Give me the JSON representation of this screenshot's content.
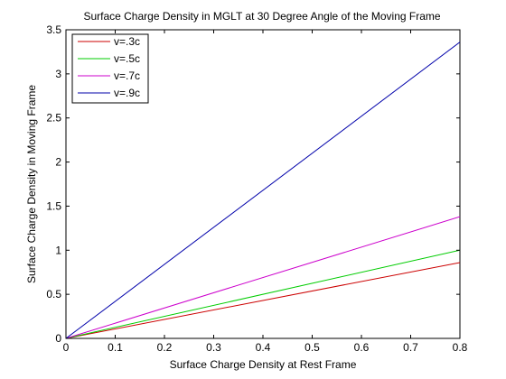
{
  "chart_data": {
    "type": "line",
    "title": "Surface Charge Density in MGLT at 30 Degree Angle of the Moving Frame",
    "xlabel": "Surface Charge Density at Rest Frame",
    "ylabel": "Surface Charge Density in Moving Frame",
    "xlim": [
      0,
      0.8
    ],
    "ylim": [
      0,
      3.5
    ],
    "xticks": [
      0,
      0.1,
      0.2,
      0.3,
      0.4,
      0.5,
      0.6,
      0.7,
      0.8
    ],
    "xtick_labels": [
      "0",
      "0.1",
      "0.2",
      "0.3",
      "0.4",
      "0.5",
      "0.6",
      "0.7",
      "0.8"
    ],
    "yticks": [
      0,
      0.5,
      1,
      1.5,
      2,
      2.5,
      3,
      3.5
    ],
    "ytick_labels": [
      "0",
      "0.5",
      "1",
      "1.5",
      "2",
      "2.5",
      "3",
      "3.5"
    ],
    "grid": false,
    "legend_position": "top-left",
    "series": [
      {
        "name": "v=.3c",
        "color": "#cc0000",
        "x": [
          0,
          0.8
        ],
        "y": [
          0,
          0.86
        ]
      },
      {
        "name": "v=.5c",
        "color": "#00cc00",
        "x": [
          0,
          0.8
        ],
        "y": [
          0,
          1.0
        ]
      },
      {
        "name": "v=.7c",
        "color": "#cc00cc",
        "x": [
          0,
          0.8
        ],
        "y": [
          0,
          1.38
        ]
      },
      {
        "name": "v=.9c",
        "color": "#0000aa",
        "x": [
          0,
          0.8
        ],
        "y": [
          0,
          3.36
        ]
      }
    ]
  }
}
